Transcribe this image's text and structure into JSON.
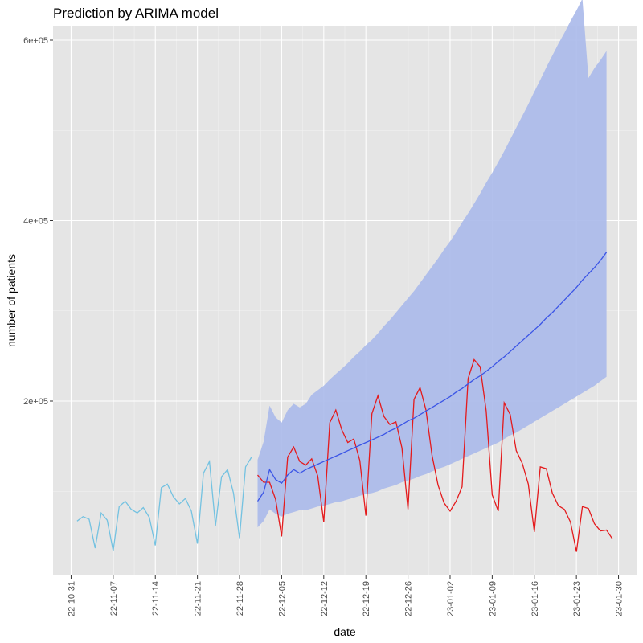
{
  "chart_data": {
    "type": "line",
    "title": "Prediction by ARIMA model",
    "xlabel": "date",
    "ylabel": "number of patients",
    "x_range": [
      "2022-10-28",
      "2023-02-02"
    ],
    "ylim": [
      0,
      600000
    ],
    "y_ticks": [
      200000,
      400000,
      600000
    ],
    "y_tick_labels": [
      "2e+05",
      "4e+05",
      "6e+05"
    ],
    "x_ticks": [
      "2022-10-31",
      "2022-11-07",
      "2022-11-14",
      "2022-11-21",
      "2022-11-28",
      "2022-12-05",
      "2022-12-12",
      "2022-12-19",
      "2022-12-26",
      "2023-01-02",
      "2023-01-09",
      "2023-01-16",
      "2023-01-23",
      "2023-01-30"
    ],
    "x_tick_labels": [
      "22-10-31",
      "22-11-07",
      "22-11-14",
      "22-11-21",
      "22-11-28",
      "22-12-05",
      "22-12-12",
      "22-12-19",
      "22-12-26",
      "23-01-02",
      "23-01-09",
      "23-01-16",
      "23-01-23",
      "23-01-30"
    ],
    "panel_background": "#e5e5e5",
    "grid": true,
    "colors": {
      "history": "#74c2e1",
      "actual": "#e41a1c",
      "forecast": "#3b55e6",
      "band": "#aab9ea"
    },
    "history_start": "2022-11-01",
    "history_values": [
      67000,
      72000,
      69000,
      37000,
      76000,
      68000,
      34000,
      83000,
      89000,
      80000,
      76000,
      82000,
      71000,
      40000,
      104000,
      108000,
      94000,
      86000,
      92000,
      78000,
      42000,
      120000,
      133000,
      62000,
      116000,
      124000,
      98000,
      48000,
      127000,
      138000
    ],
    "actual_start": "2022-12-01",
    "actual_values": [
      118000,
      110000,
      110000,
      91000,
      50000,
      138000,
      149000,
      133000,
      129000,
      136000,
      117000,
      66000,
      176000,
      190000,
      168000,
      154000,
      158000,
      134000,
      73000,
      186000,
      206000,
      183000,
      174000,
      177000,
      148000,
      80000,
      202000,
      215000,
      190000,
      140000,
      107000,
      87000,
      78000,
      89000,
      105000,
      225000,
      246000,
      238000,
      189000,
      96000,
      78000,
      198000,
      185000,
      145000,
      131000,
      108000,
      55000,
      127000,
      125000,
      98000,
      84000,
      80000,
      66000,
      33000,
      83000,
      81000,
      64000,
      56000,
      57000,
      47000
    ],
    "forecast_start": "2022-12-01",
    "forecast_values": [
      89000,
      99000,
      124000,
      113000,
      109000,
      118000,
      124000,
      120000,
      124000,
      127000,
      130000,
      133000,
      136000,
      139000,
      142000,
      145000,
      148000,
      151000,
      154000,
      157000,
      160000,
      163000,
      167000,
      170000,
      174000,
      178000,
      181000,
      185000,
      189000,
      193000,
      197000,
      201000,
      205000,
      210000,
      214000,
      219000,
      224000,
      228000,
      233000,
      238000,
      244000,
      249000,
      255000,
      261000,
      267000,
      273000,
      279000,
      285000,
      292000,
      298000,
      305000,
      312000,
      319000,
      326000,
      334000,
      341000,
      348000,
      356000,
      365000
    ],
    "lower_values": [
      60000,
      67000,
      80000,
      75000,
      72000,
      75000,
      77000,
      79000,
      79000,
      81000,
      83000,
      84000,
      86000,
      88000,
      89000,
      91000,
      93000,
      95000,
      97000,
      98000,
      100000,
      103000,
      105000,
      107000,
      110000,
      112000,
      114000,
      117000,
      119000,
      122000,
      125000,
      127000,
      130000,
      133000,
      136000,
      139000,
      142000,
      145000,
      148000,
      151000,
      154000,
      158000,
      162000,
      165000,
      169000,
      173000,
      177000,
      181000,
      185000,
      189000,
      193000,
      197000,
      201000,
      205000,
      209000,
      213000,
      217000,
      222000,
      227000
    ],
    "upper_values": [
      135000,
      155000,
      195000,
      182000,
      176000,
      190000,
      197000,
      193000,
      197000,
      207000,
      212000,
      217000,
      224000,
      230000,
      236000,
      242000,
      249000,
      255000,
      262000,
      268000,
      275000,
      283000,
      290000,
      298000,
      306000,
      314000,
      322000,
      331000,
      340000,
      349000,
      358000,
      368000,
      377000,
      387000,
      398000,
      408000,
      419000,
      430000,
      442000,
      453000,
      465000,
      477000,
      490000,
      503000,
      516000,
      529000,
      543000,
      556000,
      570000,
      583000,
      596000,
      608000,
      621000,
      633000,
      646000,
      558000,
      569000,
      578000,
      588000
    ]
  }
}
